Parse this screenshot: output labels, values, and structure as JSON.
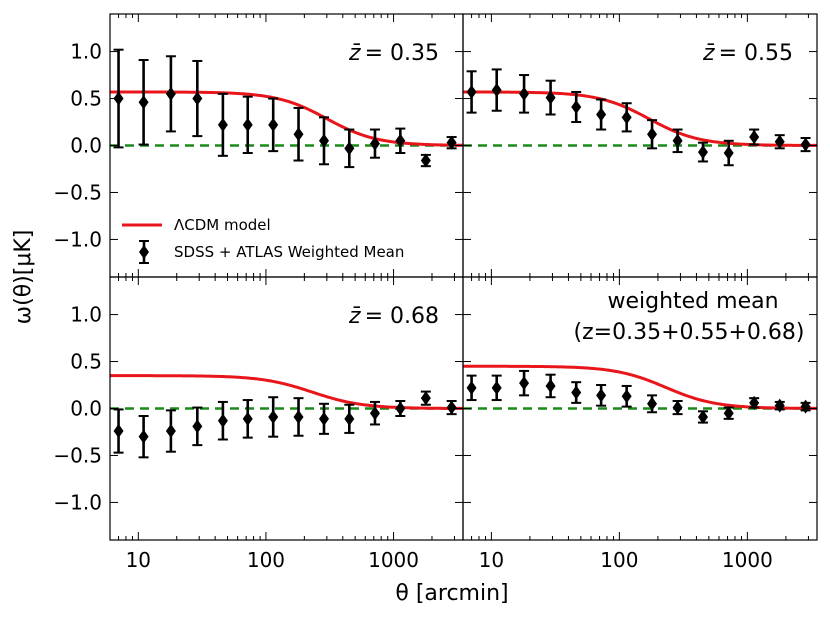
{
  "figure": {
    "xlabel": "θ [arcmin]",
    "ylabel": "ω(θ)[μK]",
    "xscale": "log",
    "xlim": [
      6,
      3500
    ],
    "ylim": [
      -1.4,
      1.4
    ],
    "xticks": [
      10,
      100,
      1000
    ],
    "xtick_labels": [
      "10",
      "100",
      "1000"
    ],
    "yticks": [
      1.0,
      0.5,
      0.0,
      -0.5,
      -1.0
    ],
    "ytick_labels": [
      "1.0",
      "0.5",
      "0.0",
      "−0.5",
      "−1.0"
    ],
    "legend": {
      "position": "lower-left of top-left panel",
      "model_label": "ΛCDM model",
      "data_label": "SDSS + ATLAS Weighted Mean"
    },
    "colors": {
      "model": "#e8161b",
      "zero_line": "#1a8a1a",
      "data": "#000000"
    }
  },
  "chart_data": [
    {
      "type": "scatter",
      "panel": "top-left",
      "title": "z̄ = 0.35",
      "title_var": "z̄",
      "title_value": "= 0.35",
      "x": [
        7,
        11,
        18,
        29,
        46,
        72,
        114,
        180,
        285,
        450,
        715,
        1130,
        1790,
        2850
      ],
      "y": [
        0.5,
        0.46,
        0.55,
        0.5,
        0.22,
        0.22,
        0.22,
        0.12,
        0.05,
        -0.03,
        0.02,
        0.05,
        -0.16,
        0.03
      ],
      "yerr": [
        0.52,
        0.45,
        0.4,
        0.4,
        0.33,
        0.3,
        0.28,
        0.28,
        0.25,
        0.2,
        0.15,
        0.13,
        0.06,
        0.06
      ],
      "model_amp": 0.57,
      "model_theta0": 300,
      "model_power": 2.2
    },
    {
      "type": "scatter",
      "panel": "top-right",
      "title": "z̄ = 0.55",
      "title_var": "z̄",
      "title_value": "= 0.55",
      "x": [
        7,
        11,
        18,
        29,
        46,
        72,
        114,
        180,
        285,
        450,
        715,
        1130,
        1790,
        2850
      ],
      "y": [
        0.57,
        0.59,
        0.55,
        0.51,
        0.41,
        0.33,
        0.3,
        0.12,
        0.05,
        -0.07,
        -0.08,
        0.09,
        0.04,
        0.01
      ],
      "yerr": [
        0.22,
        0.22,
        0.2,
        0.18,
        0.16,
        0.16,
        0.15,
        0.15,
        0.12,
        0.1,
        0.13,
        0.08,
        0.07,
        0.07
      ],
      "model_amp": 0.57,
      "model_theta0": 170,
      "model_power": 2.2
    },
    {
      "type": "scatter",
      "panel": "bottom-left",
      "title": "z̄ = 0.68",
      "title_var": "z̄",
      "title_value": "= 0.68",
      "x": [
        7,
        11,
        18,
        29,
        46,
        72,
        114,
        180,
        285,
        450,
        715,
        1130,
        1790,
        2850
      ],
      "y": [
        -0.24,
        -0.3,
        -0.24,
        -0.19,
        -0.13,
        -0.11,
        -0.09,
        -0.09,
        -0.11,
        -0.11,
        -0.05,
        0.0,
        0.11,
        0.01
      ],
      "yerr": [
        0.23,
        0.22,
        0.22,
        0.2,
        0.2,
        0.2,
        0.21,
        0.2,
        0.16,
        0.15,
        0.12,
        0.08,
        0.07,
        0.07
      ],
      "model_amp": 0.35,
      "model_theta0": 230,
      "model_power": 2.2
    },
    {
      "type": "scatter",
      "panel": "bottom-right",
      "title": "weighted mean",
      "subtitle": "(z=0.35+0.55+0.68)",
      "x": [
        7,
        11,
        18,
        29,
        46,
        72,
        114,
        180,
        285,
        450,
        715,
        1130,
        1790,
        2850
      ],
      "y": [
        0.22,
        0.22,
        0.27,
        0.24,
        0.17,
        0.14,
        0.13,
        0.05,
        0.01,
        -0.09,
        -0.05,
        0.06,
        0.03,
        0.02
      ],
      "yerr": [
        0.13,
        0.13,
        0.13,
        0.12,
        0.11,
        0.11,
        0.11,
        0.09,
        0.07,
        0.06,
        0.06,
        0.05,
        0.04,
        0.04
      ],
      "model_amp": 0.45,
      "model_theta0": 230,
      "model_power": 2.2
    }
  ]
}
